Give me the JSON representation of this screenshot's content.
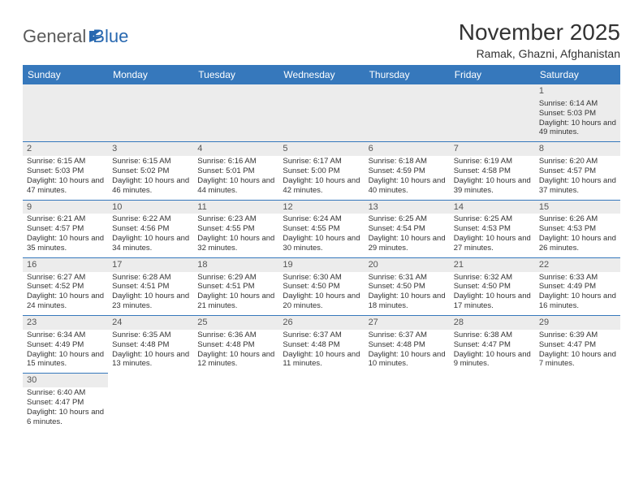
{
  "logo": {
    "text1": "General",
    "text2": "Blue"
  },
  "header": {
    "title": "November 2025",
    "location": "Ramak, Ghazni, Afghanistan"
  },
  "colors": {
    "header_bg": "#3678bc",
    "header_fg": "#ffffff",
    "cell_border": "#3678bc",
    "daynum_bg": "#ececec",
    "logo_gray": "#5a5a5a",
    "logo_blue": "#2868b0"
  },
  "weekdays": [
    "Sunday",
    "Monday",
    "Tuesday",
    "Wednesday",
    "Thursday",
    "Friday",
    "Saturday"
  ],
  "grid": [
    [
      null,
      null,
      null,
      null,
      null,
      null,
      {
        "n": "1",
        "sr": "6:14 AM",
        "ss": "5:03 PM",
        "dl": "10 hours and 49 minutes."
      }
    ],
    [
      {
        "n": "2",
        "sr": "6:15 AM",
        "ss": "5:03 PM",
        "dl": "10 hours and 47 minutes."
      },
      {
        "n": "3",
        "sr": "6:15 AM",
        "ss": "5:02 PM",
        "dl": "10 hours and 46 minutes."
      },
      {
        "n": "4",
        "sr": "6:16 AM",
        "ss": "5:01 PM",
        "dl": "10 hours and 44 minutes."
      },
      {
        "n": "5",
        "sr": "6:17 AM",
        "ss": "5:00 PM",
        "dl": "10 hours and 42 minutes."
      },
      {
        "n": "6",
        "sr": "6:18 AM",
        "ss": "4:59 PM",
        "dl": "10 hours and 40 minutes."
      },
      {
        "n": "7",
        "sr": "6:19 AM",
        "ss": "4:58 PM",
        "dl": "10 hours and 39 minutes."
      },
      {
        "n": "8",
        "sr": "6:20 AM",
        "ss": "4:57 PM",
        "dl": "10 hours and 37 minutes."
      }
    ],
    [
      {
        "n": "9",
        "sr": "6:21 AM",
        "ss": "4:57 PM",
        "dl": "10 hours and 35 minutes."
      },
      {
        "n": "10",
        "sr": "6:22 AM",
        "ss": "4:56 PM",
        "dl": "10 hours and 34 minutes."
      },
      {
        "n": "11",
        "sr": "6:23 AM",
        "ss": "4:55 PM",
        "dl": "10 hours and 32 minutes."
      },
      {
        "n": "12",
        "sr": "6:24 AM",
        "ss": "4:55 PM",
        "dl": "10 hours and 30 minutes."
      },
      {
        "n": "13",
        "sr": "6:25 AM",
        "ss": "4:54 PM",
        "dl": "10 hours and 29 minutes."
      },
      {
        "n": "14",
        "sr": "6:25 AM",
        "ss": "4:53 PM",
        "dl": "10 hours and 27 minutes."
      },
      {
        "n": "15",
        "sr": "6:26 AM",
        "ss": "4:53 PM",
        "dl": "10 hours and 26 minutes."
      }
    ],
    [
      {
        "n": "16",
        "sr": "6:27 AM",
        "ss": "4:52 PM",
        "dl": "10 hours and 24 minutes."
      },
      {
        "n": "17",
        "sr": "6:28 AM",
        "ss": "4:51 PM",
        "dl": "10 hours and 23 minutes."
      },
      {
        "n": "18",
        "sr": "6:29 AM",
        "ss": "4:51 PM",
        "dl": "10 hours and 21 minutes."
      },
      {
        "n": "19",
        "sr": "6:30 AM",
        "ss": "4:50 PM",
        "dl": "10 hours and 20 minutes."
      },
      {
        "n": "20",
        "sr": "6:31 AM",
        "ss": "4:50 PM",
        "dl": "10 hours and 18 minutes."
      },
      {
        "n": "21",
        "sr": "6:32 AM",
        "ss": "4:50 PM",
        "dl": "10 hours and 17 minutes."
      },
      {
        "n": "22",
        "sr": "6:33 AM",
        "ss": "4:49 PM",
        "dl": "10 hours and 16 minutes."
      }
    ],
    [
      {
        "n": "23",
        "sr": "6:34 AM",
        "ss": "4:49 PM",
        "dl": "10 hours and 15 minutes."
      },
      {
        "n": "24",
        "sr": "6:35 AM",
        "ss": "4:48 PM",
        "dl": "10 hours and 13 minutes."
      },
      {
        "n": "25",
        "sr": "6:36 AM",
        "ss": "4:48 PM",
        "dl": "10 hours and 12 minutes."
      },
      {
        "n": "26",
        "sr": "6:37 AM",
        "ss": "4:48 PM",
        "dl": "10 hours and 11 minutes."
      },
      {
        "n": "27",
        "sr": "6:37 AM",
        "ss": "4:48 PM",
        "dl": "10 hours and 10 minutes."
      },
      {
        "n": "28",
        "sr": "6:38 AM",
        "ss": "4:47 PM",
        "dl": "10 hours and 9 minutes."
      },
      {
        "n": "29",
        "sr": "6:39 AM",
        "ss": "4:47 PM",
        "dl": "10 hours and 7 minutes."
      }
    ],
    [
      {
        "n": "30",
        "sr": "6:40 AM",
        "ss": "4:47 PM",
        "dl": "10 hours and 6 minutes."
      },
      null,
      null,
      null,
      null,
      null,
      null
    ]
  ],
  "labels": {
    "sunrise": "Sunrise: ",
    "sunset": "Sunset: ",
    "daylight": "Daylight: "
  }
}
